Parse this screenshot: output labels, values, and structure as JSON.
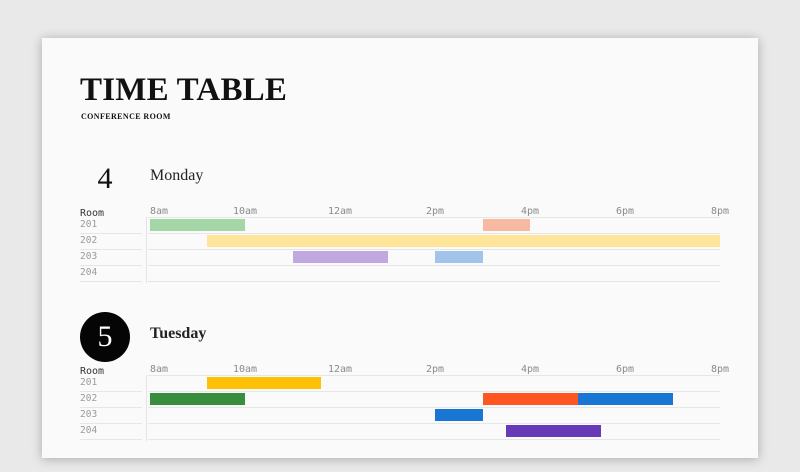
{
  "header": {
    "title": "TIME TABLE",
    "subtitle": "CONFERENCE ROOM"
  },
  "timeline": {
    "start_hour": 8,
    "end_hour": 20,
    "ticks": [
      "8am",
      "10am",
      "12am",
      "2pm",
      "4pm",
      "6pm",
      "8pm"
    ]
  },
  "days": [
    {
      "number": "4",
      "name": "Monday",
      "highlighted": false,
      "room_header": "Room",
      "rooms": [
        "201",
        "202",
        "203",
        "204"
      ],
      "events": [
        {
          "room": "201",
          "start": 8.0,
          "end": 10.0,
          "color": "#a5d6a7"
        },
        {
          "room": "201",
          "start": 15.0,
          "end": 16.0,
          "color": "#f8b9a3"
        },
        {
          "room": "202",
          "start": 9.2,
          "end": 21.2,
          "color": "#ffe59a"
        },
        {
          "room": "203",
          "start": 11.0,
          "end": 13.0,
          "color": "#c2a8e0"
        },
        {
          "room": "203",
          "start": 14.0,
          "end": 15.0,
          "color": "#a2c4ea"
        }
      ]
    },
    {
      "number": "5",
      "name": "Tuesday",
      "highlighted": true,
      "room_header": "Room",
      "rooms": [
        "201",
        "202",
        "203",
        "204"
      ],
      "events": [
        {
          "room": "201",
          "start": 9.2,
          "end": 11.6,
          "color": "#ffc107"
        },
        {
          "room": "202",
          "start": 8.0,
          "end": 10.0,
          "color": "#388e3c"
        },
        {
          "room": "202",
          "start": 15.0,
          "end": 17.0,
          "color": "#ff5722"
        },
        {
          "room": "202",
          "start": 17.0,
          "end": 19.0,
          "color": "#1976d2"
        },
        {
          "room": "203",
          "start": 14.0,
          "end": 15.0,
          "color": "#1976d2"
        },
        {
          "room": "204",
          "start": 15.5,
          "end": 17.5,
          "color": "#673ab7"
        }
      ]
    }
  ]
}
